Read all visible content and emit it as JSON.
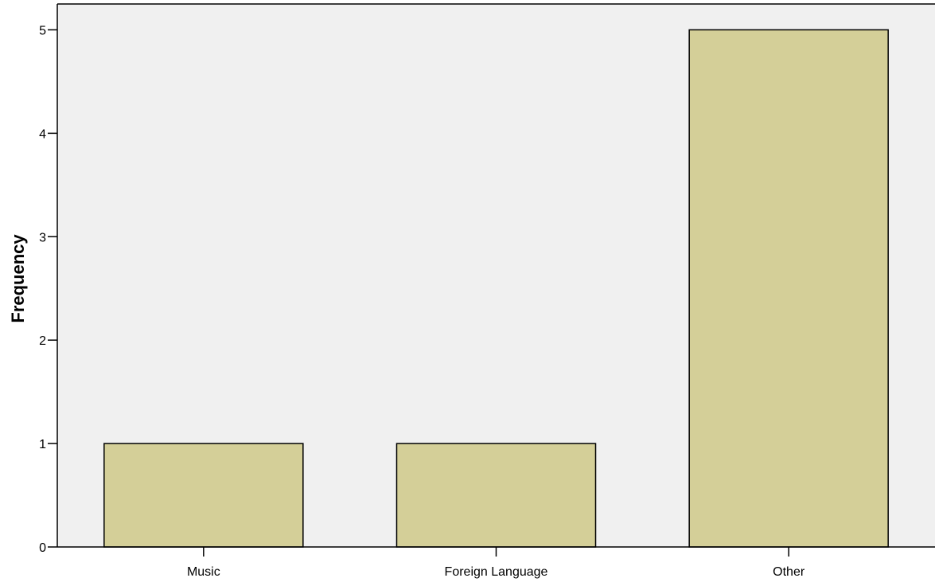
{
  "chart_data": {
    "type": "bar",
    "categories": [
      "Music",
      "Foreign Language",
      "Other"
    ],
    "values": [
      1,
      1,
      5
    ],
    "xlabel": "",
    "ylabel": "Frequency",
    "ylim": [
      0,
      5.25
    ],
    "yticks": [
      0,
      1,
      2,
      3,
      4,
      5
    ],
    "grid": false,
    "colors": {
      "bar_fill": "#d4cf98",
      "plot_background": "#f0f0f0",
      "page_background": "#ffffff",
      "stroke": "#000000"
    }
  }
}
